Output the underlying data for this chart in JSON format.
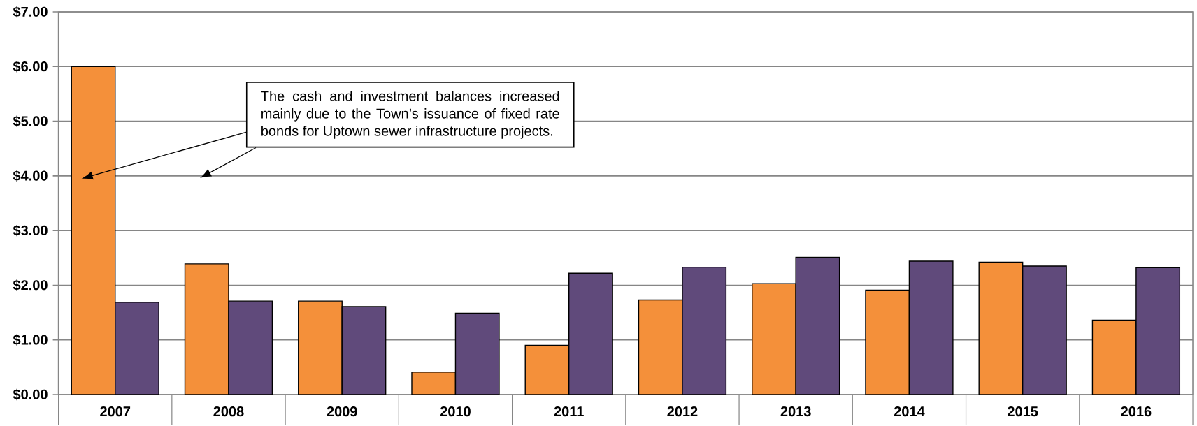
{
  "chart_data": {
    "type": "bar",
    "categories": [
      "2007",
      "2008",
      "2009",
      "2010",
      "2011",
      "2012",
      "2013",
      "2014",
      "2015",
      "2016"
    ],
    "series": [
      {
        "color": "#f4903a",
        "values": [
          6.0,
          2.39,
          1.71,
          0.41,
          0.9,
          1.73,
          2.03,
          1.91,
          2.42,
          1.36
        ]
      },
      {
        "color": "#604a7b",
        "values": [
          1.69,
          1.71,
          1.61,
          1.49,
          2.22,
          2.33,
          2.51,
          2.44,
          2.35,
          2.32
        ]
      }
    ],
    "ylim": [
      0,
      7
    ],
    "yticks": [
      {
        "value": 0,
        "label": "$0.00"
      },
      {
        "value": 1,
        "label": "$1.00"
      },
      {
        "value": 2,
        "label": "$2.00"
      },
      {
        "value": 3,
        "label": "$3.00"
      },
      {
        "value": 4,
        "label": "$4.00"
      },
      {
        "value": 5,
        "label": "$5.00"
      },
      {
        "value": 6,
        "label": "$6.00"
      },
      {
        "value": 7,
        "label": "$7.00"
      }
    ],
    "grid": "y",
    "annotations": [
      "The cash and investment balances increased mainly due to the Town’s issuance of fixed rate bonds for Uptown sewer infrastructure projects."
    ]
  }
}
